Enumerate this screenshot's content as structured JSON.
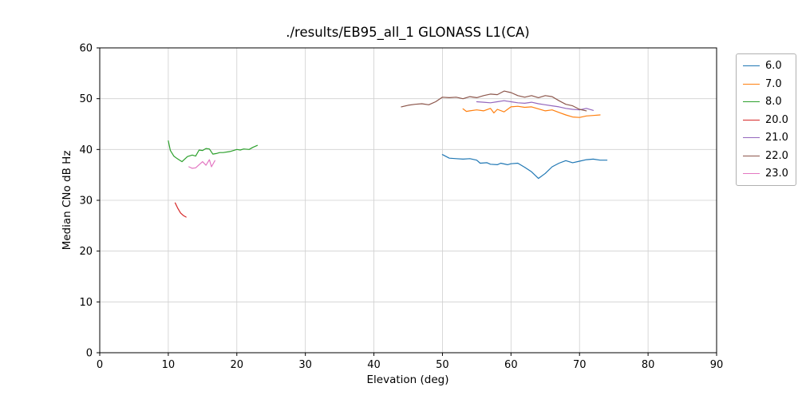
{
  "chart_data": {
    "type": "line",
    "title": "./results/EB95_all_1 GLONASS L1(CA)",
    "xlabel": "Elevation (deg)",
    "ylabel": "Median CNo dB Hz",
    "xlim": [
      0,
      90
    ],
    "ylim": [
      0,
      60
    ],
    "xticks": [
      0,
      10,
      20,
      30,
      40,
      50,
      60,
      70,
      80,
      90
    ],
    "yticks": [
      0,
      10,
      20,
      30,
      40,
      50,
      60
    ],
    "grid": true,
    "legend_position": "outside-right",
    "grid_color": "#cfcfcf",
    "spine_color": "#000000",
    "series": [
      {
        "name": "6.0",
        "color": "#1f77b4",
        "points": [
          [
            50,
            39.0
          ],
          [
            51,
            38.3
          ],
          [
            52,
            38.2
          ],
          [
            53,
            38.1
          ],
          [
            54,
            38.2
          ],
          [
            55,
            37.9
          ],
          [
            55.5,
            37.3
          ],
          [
            56.5,
            37.4
          ],
          [
            57,
            37.1
          ],
          [
            58,
            37.0
          ],
          [
            58.5,
            37.3
          ],
          [
            59.5,
            37.0
          ],
          [
            60,
            37.2
          ],
          [
            61,
            37.3
          ],
          [
            62,
            36.5
          ],
          [
            63,
            35.6
          ],
          [
            64,
            34.3
          ],
          [
            65,
            35.3
          ],
          [
            66,
            36.6
          ],
          [
            67,
            37.3
          ],
          [
            68,
            37.8
          ],
          [
            69,
            37.4
          ],
          [
            70,
            37.7
          ],
          [
            71,
            38.0
          ],
          [
            72,
            38.1
          ],
          [
            73,
            37.9
          ],
          [
            74,
            37.9
          ]
        ]
      },
      {
        "name": "7.0",
        "color": "#ff7f0e",
        "points": [
          [
            53,
            48.0
          ],
          [
            53.5,
            47.5
          ],
          [
            54,
            47.6
          ],
          [
            55,
            47.8
          ],
          [
            56,
            47.6
          ],
          [
            57,
            48.1
          ],
          [
            57.5,
            47.2
          ],
          [
            58,
            47.9
          ],
          [
            59,
            47.4
          ],
          [
            60,
            48.4
          ],
          [
            61,
            48.5
          ],
          [
            62,
            48.3
          ],
          [
            63,
            48.4
          ],
          [
            64,
            48.0
          ],
          [
            65,
            47.6
          ],
          [
            66,
            47.8
          ],
          [
            67,
            47.3
          ],
          [
            68,
            46.8
          ],
          [
            69,
            46.4
          ],
          [
            70,
            46.3
          ],
          [
            71,
            46.6
          ],
          [
            72,
            46.7
          ],
          [
            73,
            46.8
          ]
        ]
      },
      {
        "name": "8.0",
        "color": "#2ca02c",
        "points": [
          [
            10,
            41.7
          ],
          [
            10.3,
            39.8
          ],
          [
            10.8,
            38.7
          ],
          [
            11.3,
            38.2
          ],
          [
            12,
            37.6
          ],
          [
            12.8,
            38.6
          ],
          [
            13.5,
            38.9
          ],
          [
            14,
            38.7
          ],
          [
            14.5,
            39.9
          ],
          [
            15,
            39.8
          ],
          [
            15.5,
            40.2
          ],
          [
            16,
            40.1
          ],
          [
            16.5,
            39.1
          ],
          [
            17,
            39.2
          ],
          [
            17.5,
            39.4
          ],
          [
            18,
            39.4
          ],
          [
            19,
            39.6
          ],
          [
            20,
            40.0
          ],
          [
            20.5,
            39.9
          ],
          [
            21,
            40.1
          ],
          [
            21.8,
            40.0
          ],
          [
            22.3,
            40.4
          ],
          [
            23,
            40.8
          ]
        ]
      },
      {
        "name": "20.0",
        "color": "#d62728",
        "points": [
          [
            11,
            29.5
          ],
          [
            11.4,
            28.4
          ],
          [
            11.8,
            27.5
          ],
          [
            12.2,
            27.0
          ],
          [
            12.6,
            26.7
          ]
        ]
      },
      {
        "name": "21.0",
        "color": "#9467bd",
        "points": [
          [
            55,
            49.4
          ],
          [
            56,
            49.3
          ],
          [
            57,
            49.2
          ],
          [
            58,
            49.4
          ],
          [
            59,
            49.6
          ],
          [
            60,
            49.4
          ],
          [
            61,
            49.2
          ],
          [
            62,
            49.1
          ],
          [
            63,
            49.3
          ],
          [
            64,
            49.0
          ],
          [
            65,
            48.8
          ],
          [
            66,
            48.6
          ],
          [
            67,
            48.4
          ],
          [
            68,
            48.1
          ],
          [
            69,
            47.9
          ],
          [
            70,
            47.8
          ],
          [
            71,
            48.1
          ],
          [
            72,
            47.7
          ]
        ]
      },
      {
        "name": "22.0",
        "color": "#8c564b",
        "points": [
          [
            44,
            48.4
          ],
          [
            45,
            48.7
          ],
          [
            46,
            48.9
          ],
          [
            47,
            49.0
          ],
          [
            48,
            48.8
          ],
          [
            49,
            49.4
          ],
          [
            50,
            50.3
          ],
          [
            51,
            50.2
          ],
          [
            52,
            50.3
          ],
          [
            53,
            50.0
          ],
          [
            54,
            50.4
          ],
          [
            55,
            50.2
          ],
          [
            56,
            50.6
          ],
          [
            57,
            50.9
          ],
          [
            58,
            50.8
          ],
          [
            59,
            51.5
          ],
          [
            60,
            51.2
          ],
          [
            61,
            50.6
          ],
          [
            62,
            50.3
          ],
          [
            63,
            50.6
          ],
          [
            64,
            50.2
          ],
          [
            65,
            50.6
          ],
          [
            66,
            50.4
          ],
          [
            67,
            49.6
          ],
          [
            68,
            48.9
          ],
          [
            69,
            48.6
          ],
          [
            70,
            47.9
          ],
          [
            71,
            47.6
          ]
        ]
      },
      {
        "name": "23.0",
        "color": "#e377c2",
        "points": [
          [
            13,
            36.6
          ],
          [
            13.5,
            36.3
          ],
          [
            14,
            36.4
          ],
          [
            14.5,
            37.0
          ],
          [
            15,
            37.6
          ],
          [
            15.5,
            36.9
          ],
          [
            16,
            38.0
          ],
          [
            16.3,
            36.6
          ],
          [
            16.8,
            37.8
          ]
        ]
      }
    ]
  }
}
